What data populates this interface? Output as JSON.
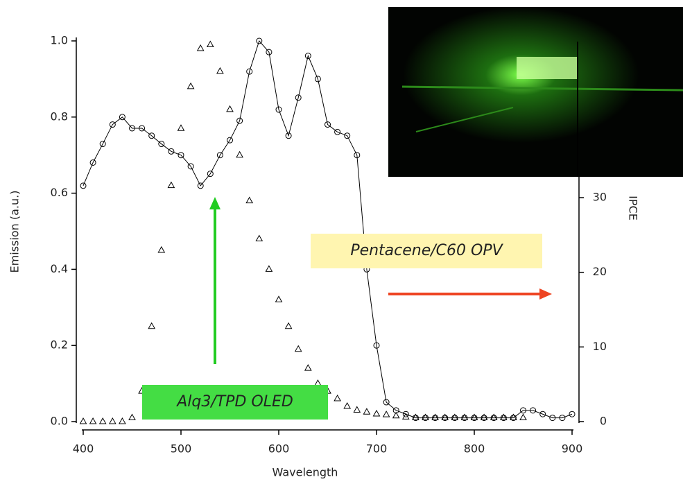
{
  "chart_data": {
    "type": "line",
    "x_label": "Wavelength",
    "y_label": "Emission (a.u.)",
    "y2_label": "IPCE",
    "annotations": [
      "Pentacene/C60 OPV",
      "Alq3/TPD OLED"
    ],
    "x": [
      400,
      410,
      420,
      430,
      440,
      450,
      460,
      470,
      480,
      490,
      500,
      510,
      520,
      530,
      540,
      550,
      560,
      570,
      580,
      590,
      600,
      610,
      620,
      630,
      640,
      650,
      660,
      670,
      680,
      690,
      700,
      710,
      720,
      730,
      740,
      750,
      760,
      770,
      780,
      790,
      800,
      810,
      820,
      830,
      840,
      850,
      860,
      870,
      880,
      890,
      900
    ],
    "series": [
      {
        "name": "Alq3/TPD OLED",
        "color": "#000000",
        "marker": "triangle",
        "values": [
          0,
          0,
          0,
          0,
          0,
          0.01,
          0.08,
          0.25,
          0.45,
          0.62,
          0.77,
          0.88,
          0.98,
          0.99,
          0.92,
          0.82,
          0.7,
          0.58,
          0.48,
          0.4,
          0.32,
          0.25,
          0.19,
          0.14,
          0.1,
          0.08,
          0.06,
          0.04,
          0.03,
          0.025,
          0.02,
          0.018,
          0.015,
          0.012,
          0.01,
          0.01,
          0.01,
          0.01,
          0.01,
          0.01,
          0.01,
          0.01,
          0.01,
          0.01,
          0.01,
          0.01,
          null,
          null,
          null,
          null,
          null
        ]
      },
      {
        "name": "Pentacene/C60 OPV",
        "color": "#000000",
        "marker": "circle",
        "axis": "y2",
        "values": [
          31.6,
          34.7,
          37.2,
          39.8,
          40.8,
          39.3,
          39.3,
          38.3,
          37.2,
          36.2,
          35.7,
          34.2,
          31.6,
          33.2,
          35.7,
          37.7,
          40.3,
          46.9,
          51.0,
          49.5,
          41.8,
          38.3,
          43.4,
          49.0,
          45.9,
          39.8,
          38.8,
          38.3,
          35.7,
          20.4,
          10.2,
          2.6,
          1.5,
          1.0,
          0.5,
          0.5,
          0.5,
          0.5,
          0.5,
          0.5,
          0.5,
          0.5,
          0.5,
          0.5,
          0.5,
          1.5,
          1.5,
          1.0,
          0.5,
          0.5,
          1.0
        ]
      }
    ],
    "xlim": [
      400,
      900
    ],
    "xticks": [
      400,
      500,
      600,
      700,
      800,
      900
    ],
    "ylim": [
      0,
      1
    ],
    "yticks": [
      {
        "value": 0,
        "label": "0.0"
      },
      {
        "value": 0.2,
        "label": "0.2"
      },
      {
        "value": 0.4,
        "label": "0.4"
      },
      {
        "value": 0.6,
        "label": "0.6"
      },
      {
        "value": 0.8,
        "label": "0.8"
      },
      {
        "value": 1,
        "label": "1.0"
      }
    ],
    "y2lim": [
      0,
      51
    ],
    "y2ticks": [
      0,
      10,
      20,
      30
    ]
  }
}
